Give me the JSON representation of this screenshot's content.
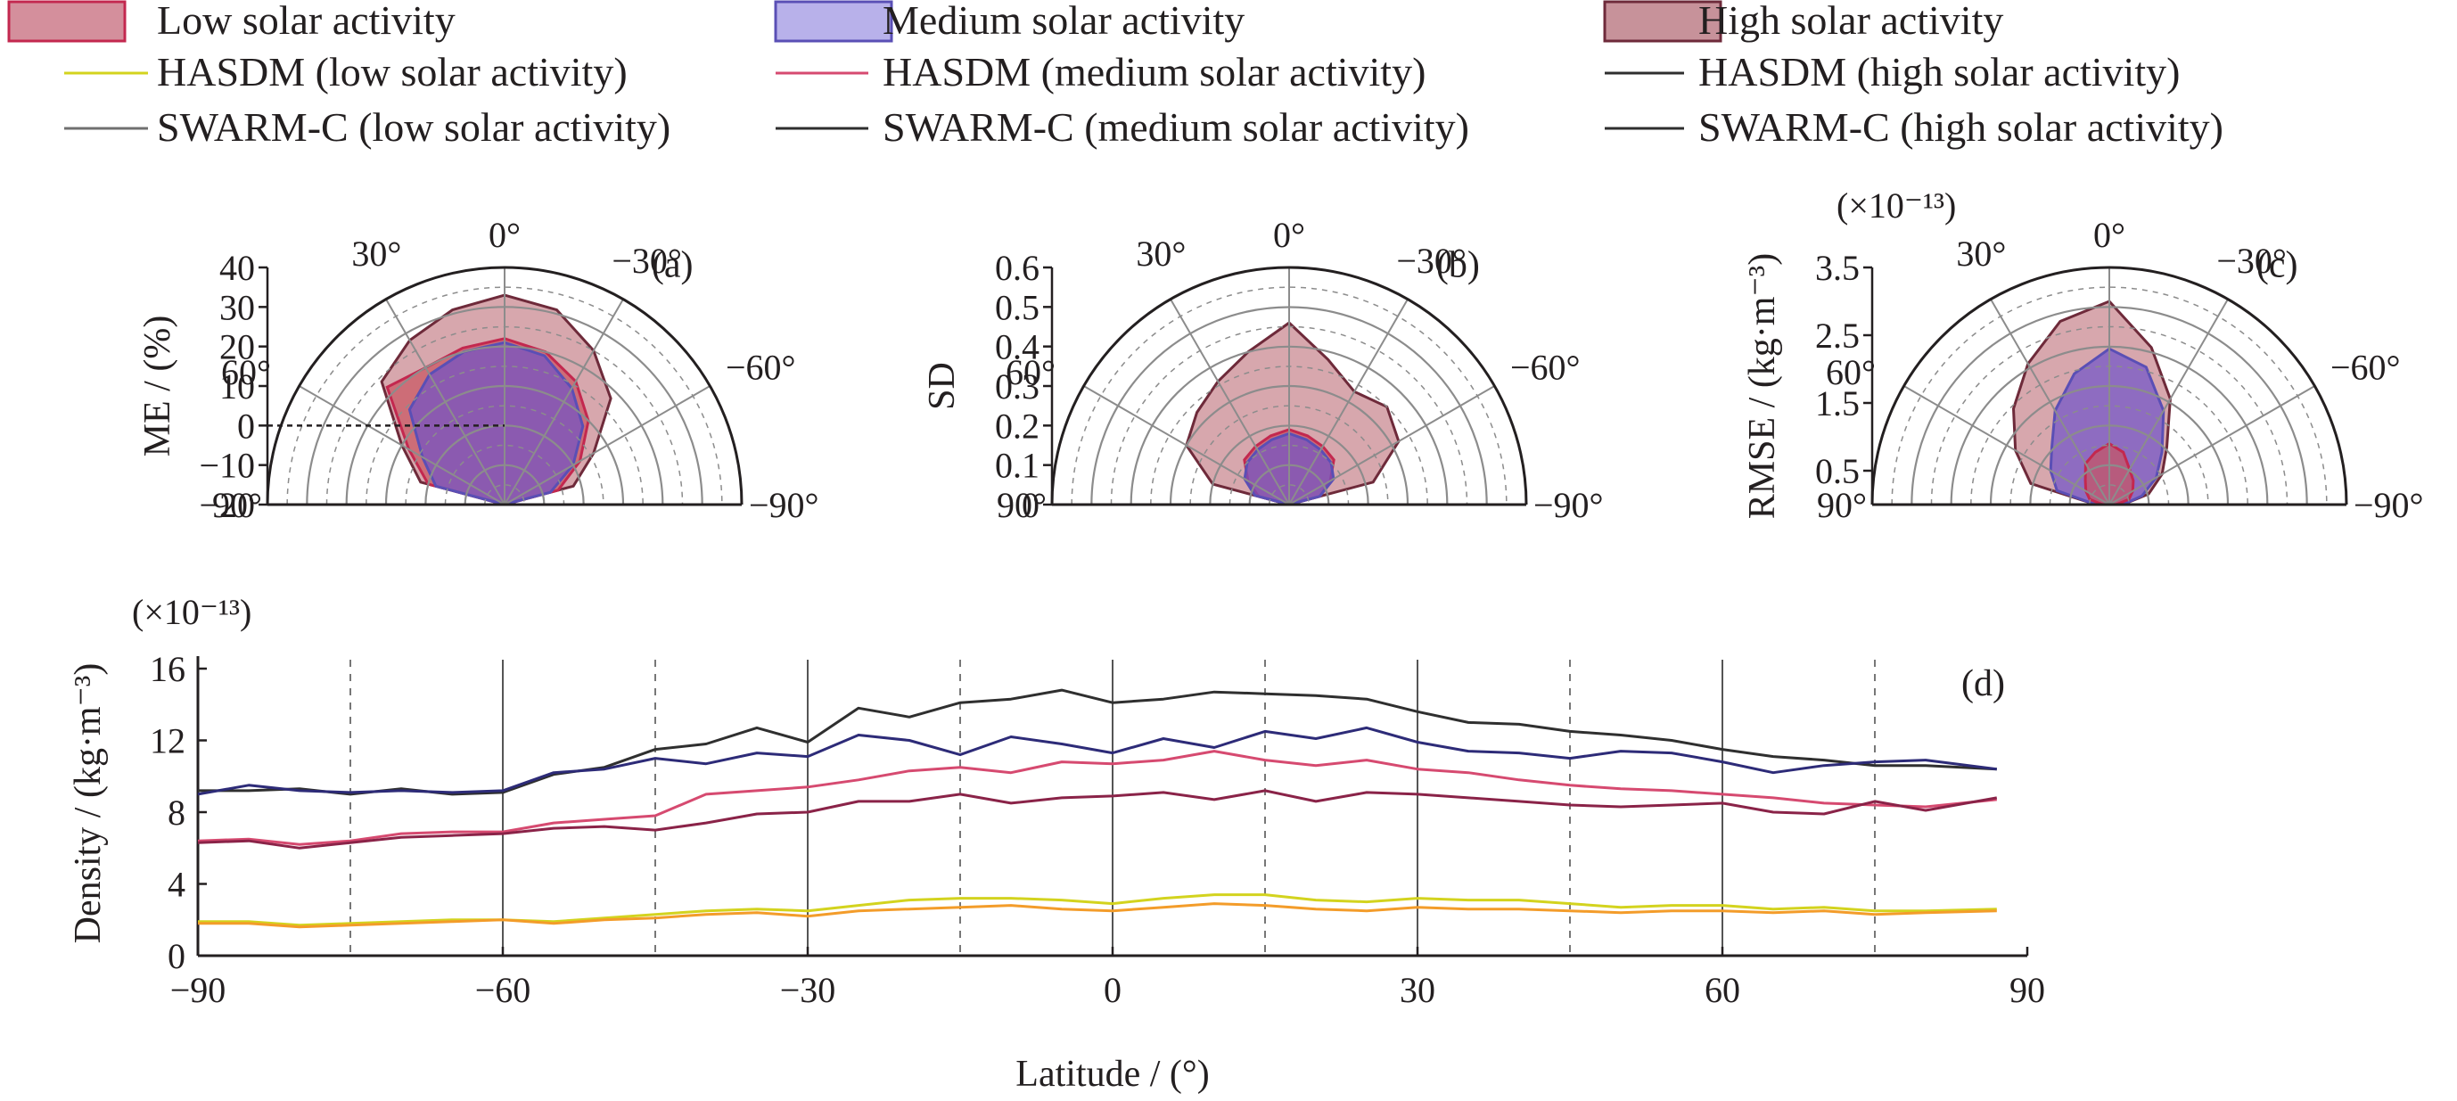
{
  "legend": {
    "items": [
      {
        "label": "Low solar activity",
        "kind": "box",
        "fill": "#d48f9c",
        "stroke": "#c3284f"
      },
      {
        "label": "Medium solar activity",
        "kind": "box",
        "fill": "#b8b1ea",
        "stroke": "#5a4fb5"
      },
      {
        "label": "High solar activity",
        "kind": "box",
        "fill": "#c7929a",
        "stroke": "#6e2a3a"
      },
      {
        "label": "HASDM (low solar activity)",
        "kind": "line",
        "stroke": "#d3d31e"
      },
      {
        "label": "HASDM (medium solar activity)",
        "kind": "line",
        "stroke": "#d64a70"
      },
      {
        "label": "HASDM (high solar activity)",
        "kind": "line",
        "stroke": "#2f2f2f"
      },
      {
        "label": "SWARM-C (low solar activity)",
        "kind": "line",
        "stroke": "#707070"
      },
      {
        "label": "SWARM-C (medium solar activity)",
        "kind": "line",
        "stroke": "#2e2e2e"
      },
      {
        "label": "SWARM-C (high solar activity)",
        "kind": "line",
        "stroke": "#2e2e2e"
      }
    ]
  },
  "colors": {
    "low_fill": "#c9545f",
    "medium_fill": "#6f53c9",
    "high_fill": "#c98a92",
    "hasdm_low": "#d3d31e",
    "swarm_low": "#f39c2a",
    "hasdm_med": "#d64a70",
    "swarm_med": "#8a2348",
    "hasdm_high": "#2f2f2f",
    "swarm_high": "#2d2b78",
    "axis": "#231f20",
    "grid": "#8c8c8c"
  },
  "chart_data": [
    {
      "type": "polar-area",
      "panel_label": "(a)",
      "ylabel": "ME / (%)",
      "ylim": [
        -20,
        40
      ],
      "r_ticks": [
        -20,
        -10,
        0,
        10,
        20,
        30,
        40
      ],
      "angle_ticks": [
        "90°",
        "60°",
        "30°",
        "0°",
        "−30°",
        "−60°",
        "−90°"
      ],
      "reference_line": 0,
      "series": [
        {
          "name": "High solar activity",
          "angles": [
            90,
            75,
            60,
            45,
            30,
            15,
            0,
            -15,
            -30,
            -45,
            -60,
            -75,
            -90
          ],
          "values": [
            -20,
            2,
            10,
            24,
            28,
            31,
            33,
            31,
            25,
            18,
            6,
            -2,
            -20
          ]
        },
        {
          "name": "Low solar activity",
          "angles": [
            90,
            75,
            60,
            45,
            30,
            15,
            0,
            -15,
            -30,
            -45,
            -60,
            -75,
            -90
          ],
          "values": [
            -20,
            0,
            8,
            22,
            20,
            21,
            22,
            20,
            16,
            10,
            2,
            -6,
            -20
          ]
        },
        {
          "name": "Medium solar activity",
          "angles": [
            90,
            75,
            60,
            45,
            30,
            15,
            0,
            -15,
            -30,
            -45,
            -60,
            -75,
            -90
          ],
          "values": [
            -20,
            -2,
            4,
            14,
            18,
            20,
            21,
            19,
            14,
            8,
            0,
            -8,
            -20
          ]
        }
      ]
    },
    {
      "type": "polar-area",
      "panel_label": "(b)",
      "ylabel": "SD",
      "ylim": [
        0,
        0.6
      ],
      "r_ticks": [
        0,
        0.1,
        0.2,
        0.3,
        0.4,
        0.5,
        0.6
      ],
      "angle_ticks": [
        "90°",
        "60°",
        "30°",
        "0°",
        "−30°",
        "−60°",
        "−90°"
      ],
      "series": [
        {
          "name": "High solar activity",
          "angles": [
            90,
            75,
            60,
            45,
            30,
            15,
            0,
            -15,
            -30,
            -45,
            -60,
            -75,
            -90
          ],
          "values": [
            0,
            0.2,
            0.3,
            0.33,
            0.36,
            0.4,
            0.46,
            0.38,
            0.33,
            0.35,
            0.32,
            0.22,
            0
          ]
        },
        {
          "name": "Low solar activity",
          "angles": [
            90,
            75,
            60,
            45,
            30,
            15,
            0,
            -15,
            -30,
            -45,
            -60,
            -75,
            -90
          ],
          "values": [
            0,
            0.08,
            0.12,
            0.16,
            0.17,
            0.18,
            0.19,
            0.18,
            0.17,
            0.16,
            0.12,
            0.08,
            0
          ]
        },
        {
          "name": "Medium solar activity",
          "angles": [
            90,
            75,
            60,
            45,
            30,
            15,
            0,
            -15,
            -30,
            -45,
            -60,
            -75,
            -90
          ],
          "values": [
            0,
            0.09,
            0.13,
            0.15,
            0.16,
            0.17,
            0.18,
            0.17,
            0.16,
            0.15,
            0.13,
            0.08,
            0
          ]
        }
      ]
    },
    {
      "type": "polar-area",
      "panel_label": "(c)",
      "ylabel": "RMSE / (kg·m⁻³)",
      "scale_note": "(×10⁻¹³)",
      "ylim": [
        0,
        3.5
      ],
      "r_ticks": [
        0.5,
        1.5,
        2.5,
        3.5
      ],
      "angle_ticks": [
        "90°",
        "60°",
        "30°",
        "0°",
        "−30°",
        "−60°",
        "−90°"
      ],
      "series": [
        {
          "name": "High solar activity",
          "angles": [
            90,
            75,
            60,
            45,
            30,
            15,
            0,
            -15,
            -30,
            -45,
            -60,
            -75,
            -90
          ],
          "values": [
            0.2,
            1.2,
            1.6,
            2.0,
            2.4,
            2.8,
            3.0,
            2.4,
            1.8,
            1.2,
            0.9,
            0.6,
            0.2
          ]
        },
        {
          "name": "Medium solar activity",
          "angles": [
            90,
            75,
            60,
            45,
            30,
            15,
            0,
            -15,
            -30,
            -45,
            -60,
            -75,
            -90
          ],
          "values": [
            0.2,
            0.8,
            1.0,
            1.2,
            1.6,
            2.0,
            2.3,
            2.1,
            1.6,
            1.1,
            0.8,
            0.5,
            0.2
          ]
        },
        {
          "name": "Low solar activity",
          "angles": [
            90,
            75,
            60,
            45,
            30,
            15,
            0,
            -15,
            -30,
            -45,
            -60,
            -75,
            -90
          ],
          "values": [
            0.1,
            0.3,
            0.4,
            0.5,
            0.7,
            0.8,
            0.9,
            0.8,
            0.6,
            0.5,
            0.4,
            0.3,
            0.1
          ]
        }
      ]
    },
    {
      "type": "line",
      "panel_label": "(d)",
      "xlabel": "Latitude / (°)",
      "ylabel": "Density / (kg·m⁻³)",
      "scale_note": "(×10⁻¹³)",
      "xlim": [
        -90,
        90
      ],
      "ylim": [
        0,
        16
      ],
      "x_ticks": [
        -90,
        -60,
        -30,
        0,
        30,
        60,
        90
      ],
      "x_tick_labels": [
        "−90",
        "−60",
        "−30",
        "0",
        "30",
        "60",
        "90"
      ],
      "y_ticks": [
        0,
        4,
        8,
        12,
        16
      ],
      "x_solid_grid": [
        -60,
        -30,
        0,
        30,
        60
      ],
      "x_dashed_grid": [
        -75,
        -45,
        -15,
        15,
        45,
        75
      ],
      "x": [
        -90,
        -85,
        -80,
        -75,
        -70,
        -65,
        -60,
        -55,
        -50,
        -45,
        -40,
        -35,
        -30,
        -25,
        -20,
        -15,
        -10,
        -5,
        0,
        5,
        10,
        15,
        20,
        25,
        30,
        35,
        40,
        45,
        50,
        55,
        60,
        65,
        70,
        75,
        80,
        87
      ],
      "series": [
        {
          "name": "HASDM (high solar activity)",
          "values": [
            9.2,
            9.2,
            9.3,
            9.0,
            9.3,
            9.0,
            9.1,
            10.1,
            10.5,
            11.5,
            11.8,
            12.7,
            11.9,
            13.8,
            13.3,
            14.1,
            14.3,
            14.8,
            14.1,
            14.3,
            14.7,
            14.6,
            14.5,
            14.3,
            13.6,
            13.0,
            12.9,
            12.5,
            12.3,
            12.0,
            11.5,
            11.1,
            10.9,
            10.6,
            10.6,
            10.4
          ]
        },
        {
          "name": "SWARM-C (high solar activity)",
          "values": [
            9.0,
            9.5,
            9.2,
            9.1,
            9.2,
            9.1,
            9.2,
            10.2,
            10.4,
            11.0,
            10.7,
            11.3,
            11.1,
            12.3,
            12.0,
            11.2,
            12.2,
            11.8,
            11.3,
            12.1,
            11.6,
            12.5,
            12.1,
            12.7,
            11.9,
            11.4,
            11.3,
            11.0,
            11.4,
            11.3,
            10.8,
            10.2,
            10.6,
            10.8,
            10.9,
            10.4
          ]
        },
        {
          "name": "HASDM (medium solar activity)",
          "values": [
            6.4,
            6.5,
            6.2,
            6.4,
            6.8,
            6.9,
            6.9,
            7.4,
            7.6,
            7.8,
            9.0,
            9.2,
            9.4,
            9.8,
            10.3,
            10.5,
            10.2,
            10.8,
            10.7,
            10.9,
            11.4,
            10.9,
            10.6,
            10.9,
            10.4,
            10.2,
            9.8,
            9.5,
            9.3,
            9.2,
            9.0,
            8.8,
            8.5,
            8.4,
            8.3,
            8.7
          ]
        },
        {
          "name": "SWARM-C (medium solar activity)",
          "values": [
            6.3,
            6.4,
            6.0,
            6.3,
            6.6,
            6.7,
            6.8,
            7.1,
            7.2,
            7.0,
            7.4,
            7.9,
            8.0,
            8.6,
            8.6,
            9.0,
            8.5,
            8.8,
            8.9,
            9.1,
            8.7,
            9.2,
            8.6,
            9.1,
            9.0,
            8.8,
            8.6,
            8.4,
            8.3,
            8.4,
            8.5,
            8.0,
            7.9,
            8.6,
            8.1,
            8.8
          ]
        },
        {
          "name": "HASDM (low solar activity)",
          "values": [
            1.9,
            1.9,
            1.7,
            1.8,
            1.9,
            2.0,
            2.0,
            1.9,
            2.1,
            2.3,
            2.5,
            2.6,
            2.5,
            2.8,
            3.1,
            3.2,
            3.2,
            3.1,
            2.9,
            3.2,
            3.4,
            3.4,
            3.1,
            3.0,
            3.2,
            3.1,
            3.1,
            2.9,
            2.7,
            2.8,
            2.8,
            2.6,
            2.7,
            2.5,
            2.5,
            2.6
          ]
        },
        {
          "name": "SWARM-C (low solar activity)",
          "values": [
            1.8,
            1.8,
            1.6,
            1.7,
            1.8,
            1.9,
            2.0,
            1.8,
            2.0,
            2.1,
            2.3,
            2.4,
            2.2,
            2.5,
            2.6,
            2.7,
            2.8,
            2.6,
            2.5,
            2.7,
            2.9,
            2.8,
            2.6,
            2.5,
            2.7,
            2.6,
            2.6,
            2.5,
            2.4,
            2.5,
            2.5,
            2.4,
            2.5,
            2.3,
            2.4,
            2.5
          ]
        }
      ]
    }
  ]
}
